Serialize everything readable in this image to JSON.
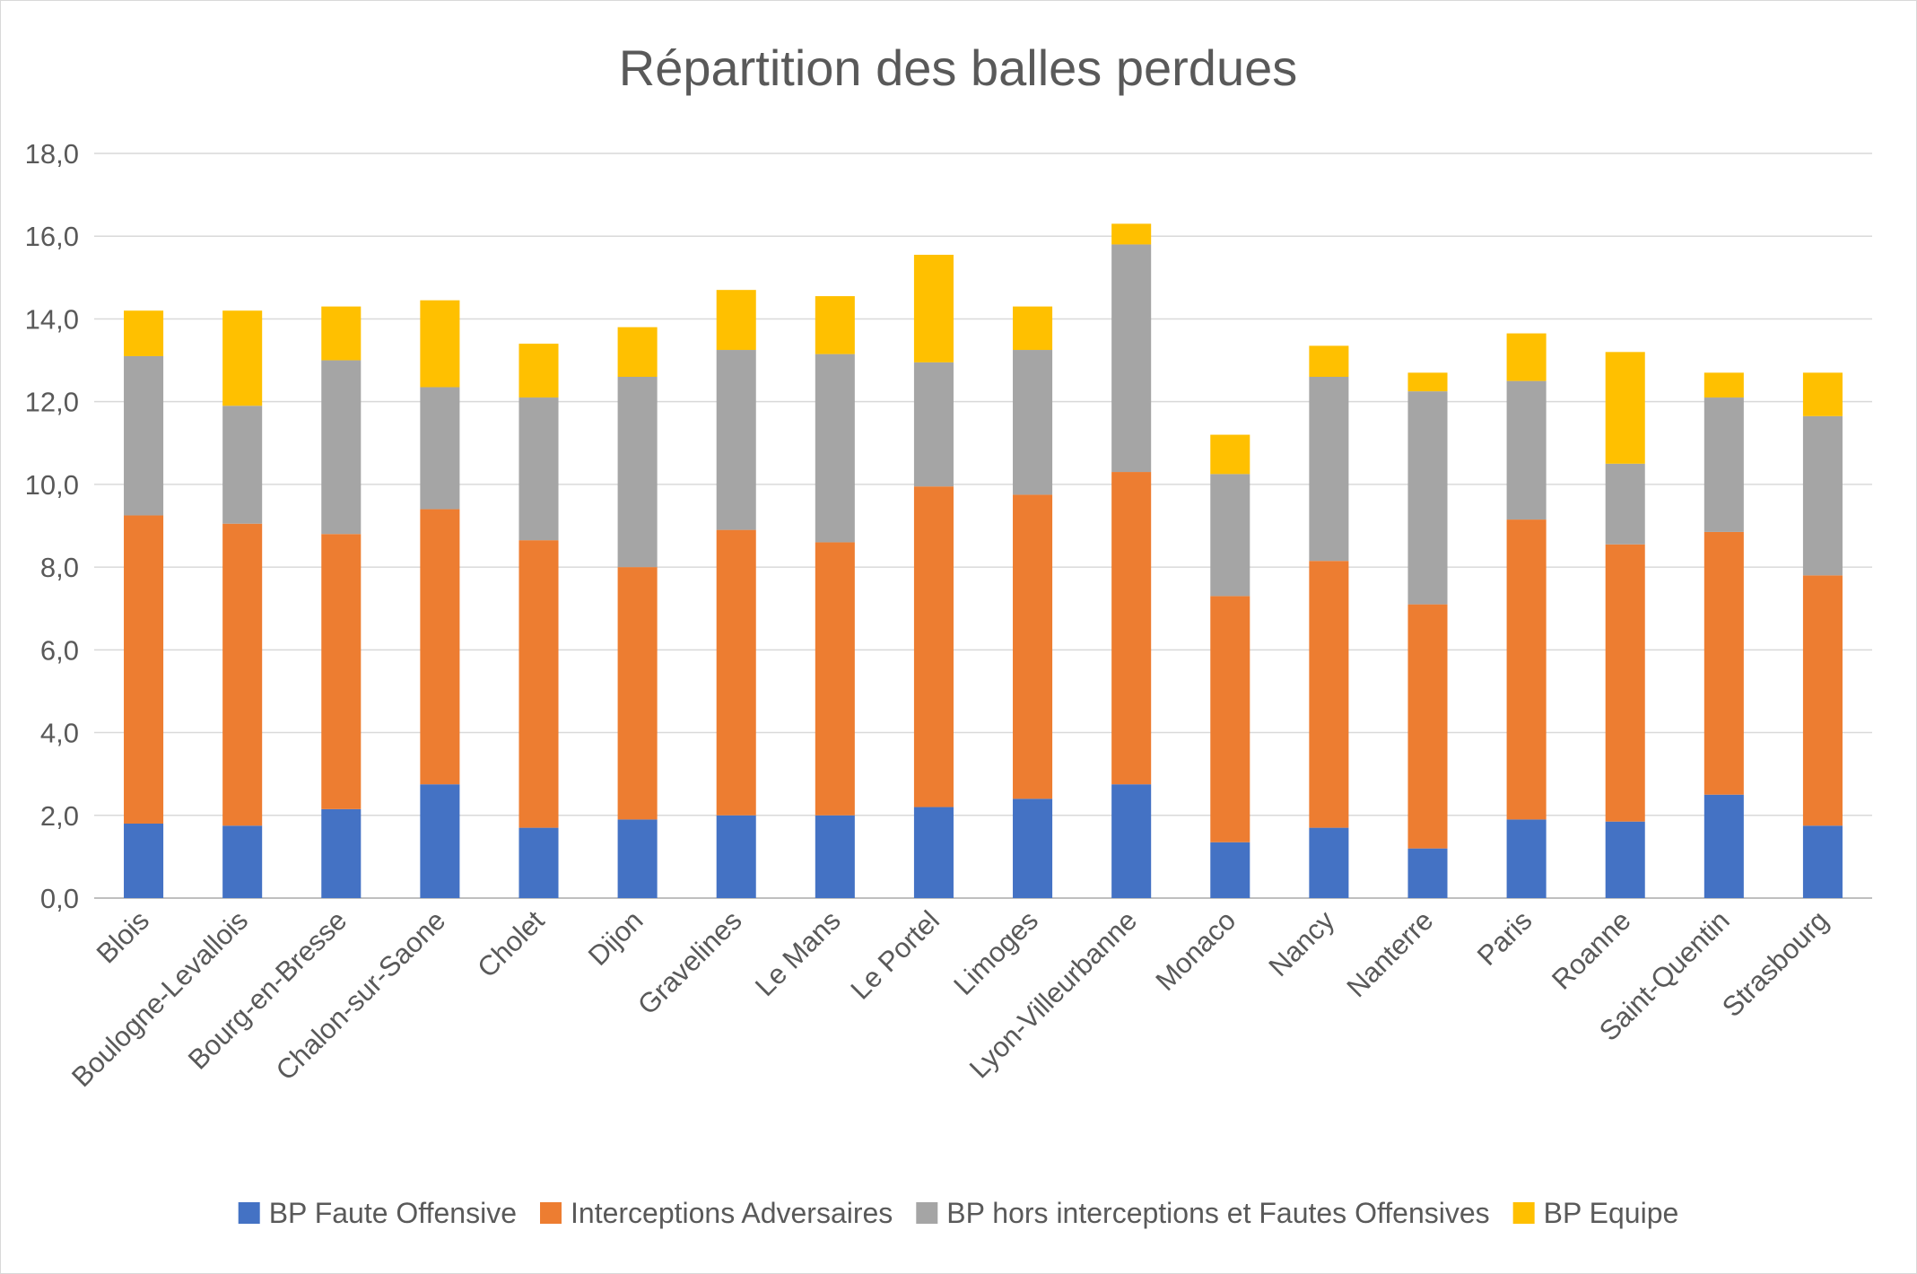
{
  "chart_data": {
    "type": "bar",
    "stacked": true,
    "title": "Répartition des balles perdues",
    "xlabel": "",
    "ylabel": "",
    "ylim": [
      0,
      18
    ],
    "y_ticks": [
      "0,0",
      "2,0",
      "4,0",
      "6,0",
      "8,0",
      "10,0",
      "12,0",
      "14,0",
      "16,0",
      "18,0"
    ],
    "grid": true,
    "legend_position": "bottom",
    "categories": [
      "Blois",
      "Boulogne-Levallois",
      "Bourg-en-Bresse",
      "Chalon-sur-Saone",
      "Cholet",
      "Dijon",
      "Gravelines",
      "Le Mans",
      "Le Portel",
      "Limoges",
      "Lyon-Villeurbanne",
      "Monaco",
      "Nancy",
      "Nanterre",
      "Paris",
      "Roanne",
      "Saint-Quentin",
      "Strasbourg"
    ],
    "series": [
      {
        "name": "BP Faute Offensive",
        "color": "#4472C4",
        "values": [
          1.8,
          1.75,
          2.15,
          2.75,
          1.7,
          1.9,
          2.0,
          2.0,
          2.2,
          2.4,
          2.75,
          1.35,
          1.7,
          1.2,
          1.9,
          1.85,
          2.5,
          1.75
        ]
      },
      {
        "name": "Interceptions Adversaires",
        "color": "#ED7D31",
        "values": [
          7.45,
          7.3,
          6.65,
          6.65,
          6.95,
          6.1,
          6.9,
          6.6,
          7.75,
          7.35,
          7.55,
          5.95,
          6.45,
          5.9,
          7.25,
          6.7,
          6.35,
          6.05
        ]
      },
      {
        "name": "BP hors interceptions et Fautes Offensives",
        "color": "#A5A5A5",
        "values": [
          3.85,
          2.85,
          4.2,
          2.95,
          3.45,
          4.6,
          4.35,
          4.55,
          3.0,
          3.5,
          5.5,
          2.95,
          4.45,
          5.15,
          3.35,
          1.95,
          3.25,
          3.85
        ]
      },
      {
        "name": "BP Equipe",
        "color": "#FFC000",
        "values": [
          1.1,
          2.3,
          1.3,
          2.1,
          1.3,
          1.2,
          1.45,
          1.4,
          2.6,
          1.05,
          0.5,
          0.95,
          0.75,
          0.45,
          1.15,
          2.7,
          0.6,
          1.05
        ]
      }
    ]
  }
}
